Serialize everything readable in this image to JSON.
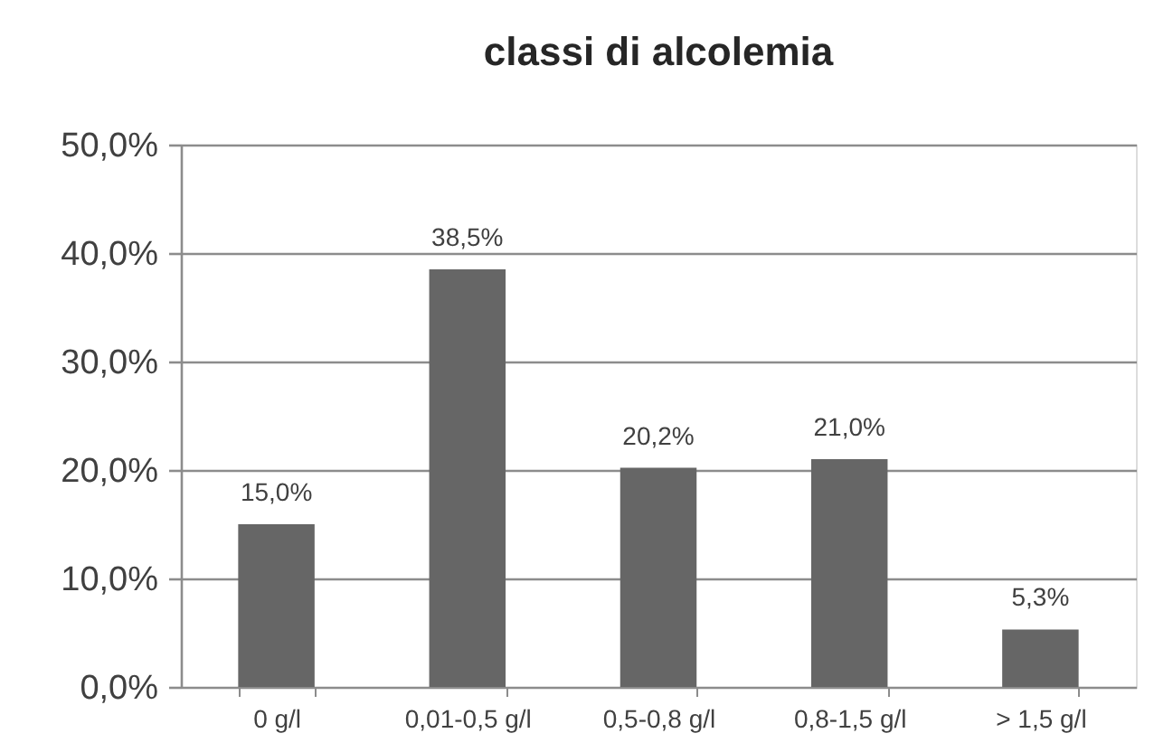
{
  "chart_data": {
    "type": "bar",
    "title": "classi di alcolemia",
    "categories": [
      "0 g/l",
      "0,01-0,5 g/l",
      "0,5-0,8 g/l",
      "0,8-1,5 g/l",
      "> 1,5 g/l"
    ],
    "values": [
      15.0,
      38.5,
      20.2,
      21.0,
      5.3
    ],
    "value_labels": [
      "15,0%",
      "38,5%",
      "20,2%",
      "21,0%",
      "5,3%"
    ],
    "color": "#666666",
    "ylim": [
      0,
      50
    ],
    "yticks": [
      {
        "value": 0,
        "label": "0,0%"
      },
      {
        "value": 10,
        "label": "10,0%"
      },
      {
        "value": 20,
        "label": "20,0%"
      },
      {
        "value": 30,
        "label": "30,0%"
      },
      {
        "value": 40,
        "label": "40,0%"
      },
      {
        "value": 50,
        "label": "50,0%"
      }
    ],
    "grid": "y"
  }
}
